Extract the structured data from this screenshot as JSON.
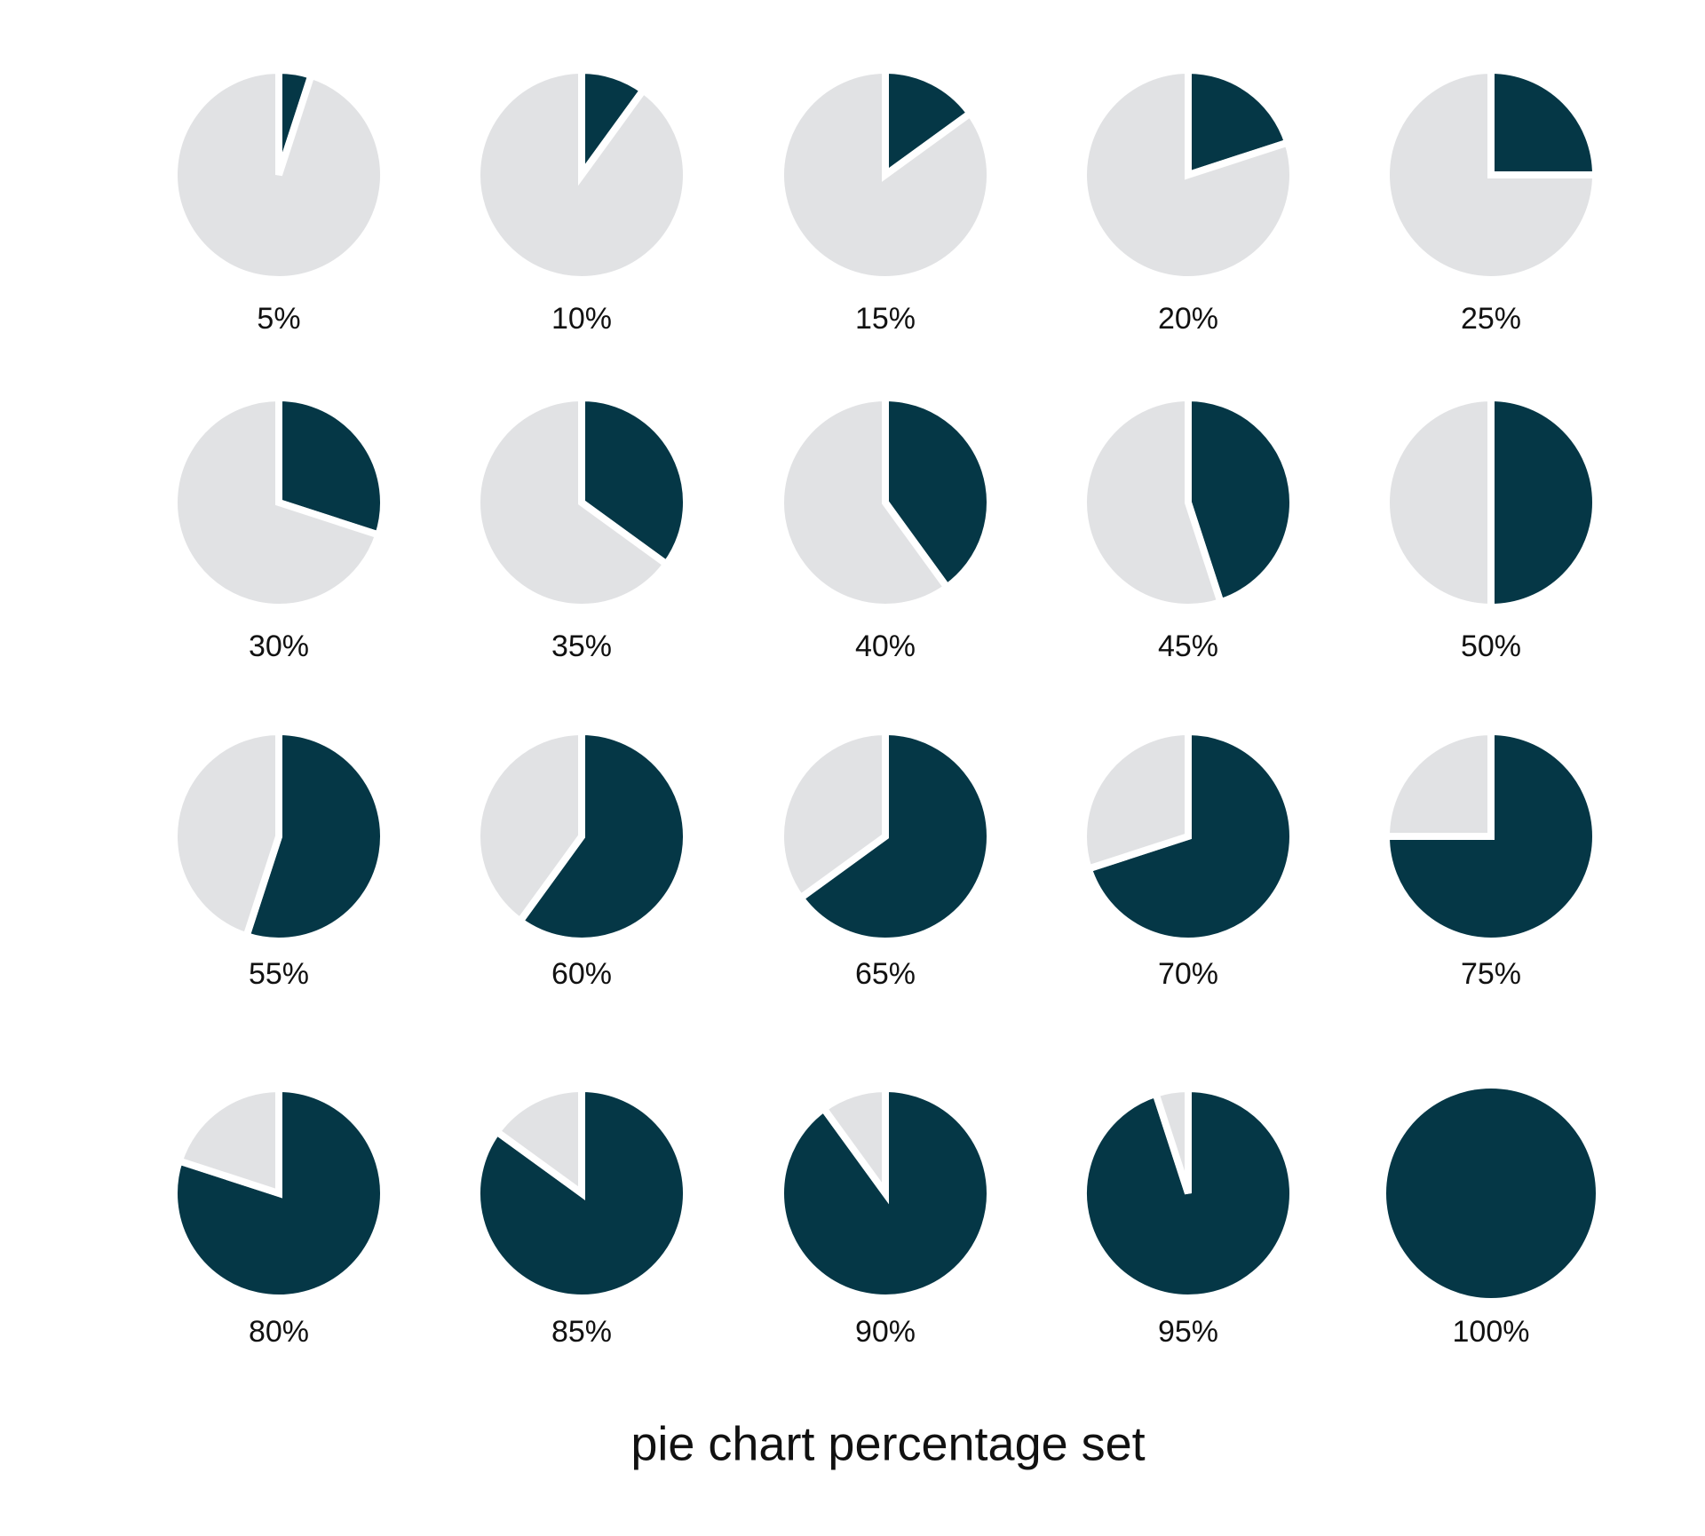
{
  "title": "pie chart percentage set",
  "chart_data": [
    {
      "type": "pie",
      "values": [
        5,
        95
      ],
      "value_labels": [
        "5%",
        null
      ],
      "colors": [
        "#053746",
        "#e1e2e4"
      ]
    },
    {
      "type": "pie",
      "values": [
        10,
        90
      ],
      "value_labels": [
        "10%",
        null
      ],
      "colors": [
        "#053746",
        "#e1e2e4"
      ]
    },
    {
      "type": "pie",
      "values": [
        15,
        85
      ],
      "value_labels": [
        "15%",
        null
      ],
      "colors": [
        "#053746",
        "#e1e2e4"
      ]
    },
    {
      "type": "pie",
      "values": [
        20,
        80
      ],
      "value_labels": [
        "20%",
        null
      ],
      "colors": [
        "#053746",
        "#e1e2e4"
      ]
    },
    {
      "type": "pie",
      "values": [
        25,
        75
      ],
      "value_labels": [
        "25%",
        null
      ],
      "colors": [
        "#053746",
        "#e1e2e4"
      ]
    },
    {
      "type": "pie",
      "values": [
        30,
        70
      ],
      "value_labels": [
        "30%",
        null
      ],
      "colors": [
        "#053746",
        "#e1e2e4"
      ]
    },
    {
      "type": "pie",
      "values": [
        35,
        65
      ],
      "value_labels": [
        "35%",
        null
      ],
      "colors": [
        "#053746",
        "#e1e2e4"
      ]
    },
    {
      "type": "pie",
      "values": [
        40,
        60
      ],
      "value_labels": [
        "40%",
        null
      ],
      "colors": [
        "#053746",
        "#e1e2e4"
      ]
    },
    {
      "type": "pie",
      "values": [
        45,
        55
      ],
      "value_labels": [
        "45%",
        null
      ],
      "colors": [
        "#053746",
        "#e1e2e4"
      ]
    },
    {
      "type": "pie",
      "values": [
        50,
        50
      ],
      "value_labels": [
        "50%",
        null
      ],
      "colors": [
        "#053746",
        "#e1e2e4"
      ]
    },
    {
      "type": "pie",
      "values": [
        55,
        45
      ],
      "value_labels": [
        "55%",
        null
      ],
      "colors": [
        "#053746",
        "#e1e2e4"
      ]
    },
    {
      "type": "pie",
      "values": [
        60,
        40
      ],
      "value_labels": [
        "60%",
        null
      ],
      "colors": [
        "#053746",
        "#e1e2e4"
      ]
    },
    {
      "type": "pie",
      "values": [
        65,
        35
      ],
      "value_labels": [
        "65%",
        null
      ],
      "colors": [
        "#053746",
        "#e1e2e4"
      ]
    },
    {
      "type": "pie",
      "values": [
        70,
        30
      ],
      "value_labels": [
        "70%",
        null
      ],
      "colors": [
        "#053746",
        "#e1e2e4"
      ]
    },
    {
      "type": "pie",
      "values": [
        75,
        25
      ],
      "value_labels": [
        "75%",
        null
      ],
      "colors": [
        "#053746",
        "#e1e2e4"
      ]
    },
    {
      "type": "pie",
      "values": [
        80,
        20
      ],
      "value_labels": [
        "80%",
        null
      ],
      "colors": [
        "#053746",
        "#e1e2e4"
      ]
    },
    {
      "type": "pie",
      "values": [
        85,
        15
      ],
      "value_labels": [
        "85%",
        null
      ],
      "colors": [
        "#053746",
        "#e1e2e4"
      ]
    },
    {
      "type": "pie",
      "values": [
        90,
        10
      ],
      "value_labels": [
        "90%",
        null
      ],
      "colors": [
        "#053746",
        "#e1e2e4"
      ]
    },
    {
      "type": "pie",
      "values": [
        95,
        5
      ],
      "value_labels": [
        "95%",
        null
      ],
      "colors": [
        "#053746",
        "#e1e2e4"
      ]
    },
    {
      "type": "pie",
      "values": [
        100,
        0
      ],
      "value_labels": [
        "100%",
        null
      ],
      "colors": [
        "#053746",
        "#e1e2e4"
      ]
    }
  ]
}
